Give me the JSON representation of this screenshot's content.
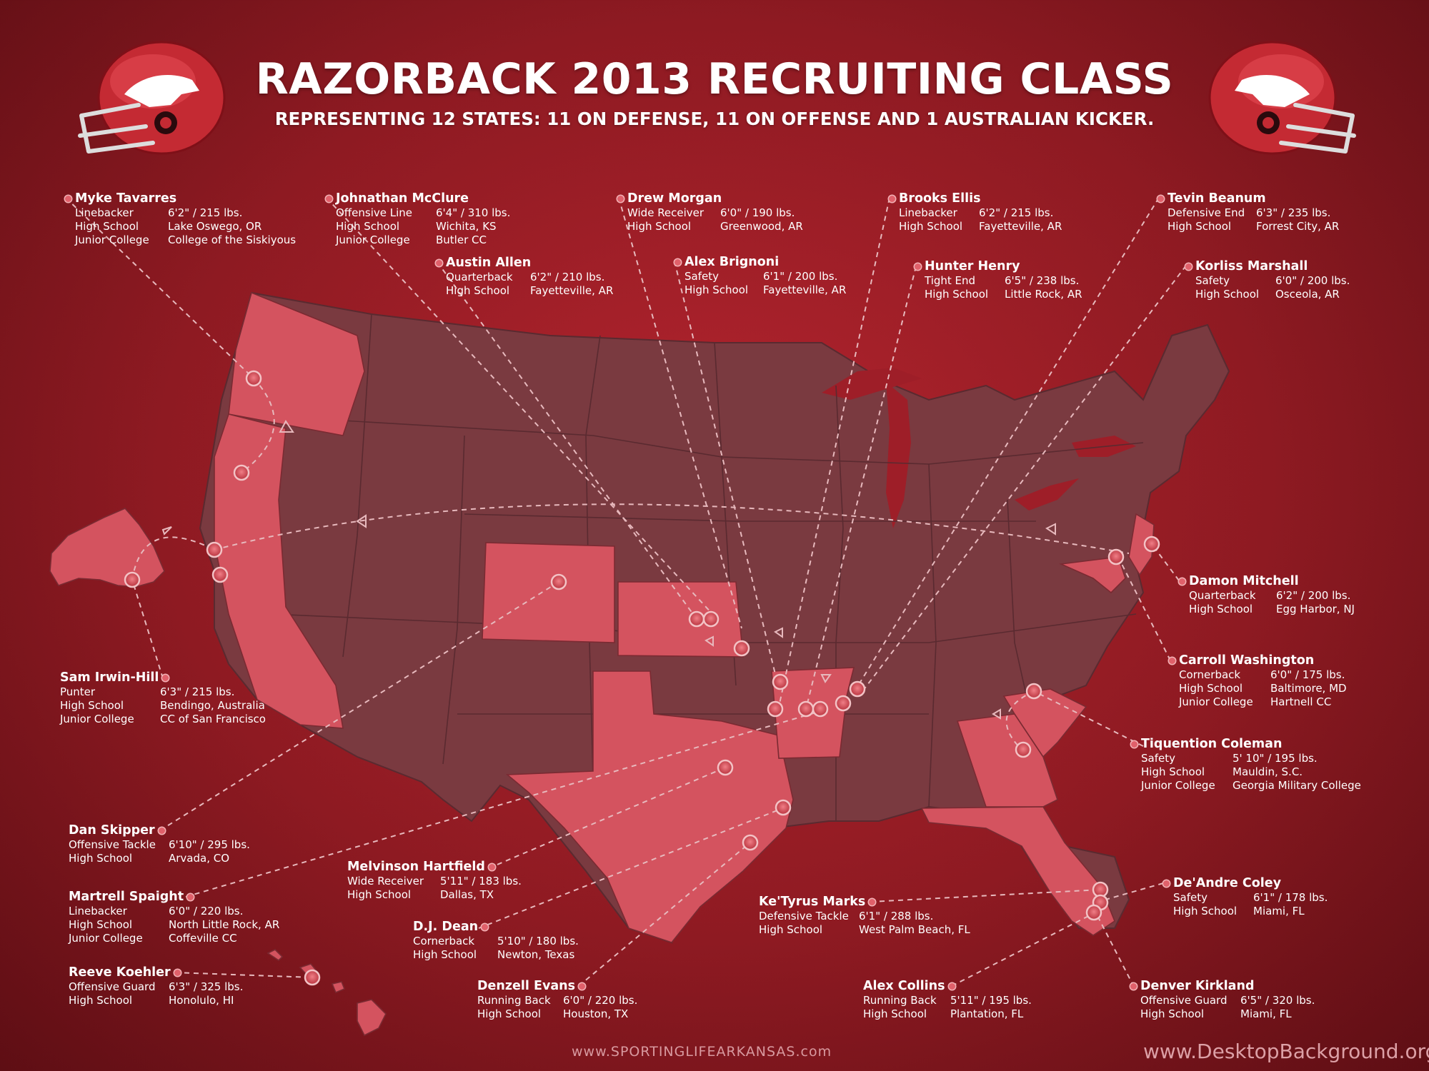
{
  "header": {
    "title": "RAZORBACK 2013 RECRUITING CLASS",
    "subtitle": "REPRESENTING 12 STATES: 11 ON DEFENSE, 11 ON OFFENSE AND 1 AUSTRALIAN KICKER."
  },
  "colors": {
    "background": "#9e1e28",
    "highlight_state": "#d4535f",
    "other_state": "#7a3a40",
    "marker": "#e0606a"
  },
  "recruits": [
    {
      "id": "myke-tavarres",
      "name": "Myke Tavarres",
      "rows": [
        [
          "Linebacker",
          "6'2\" / 215 lbs."
        ],
        [
          "High School",
          "Lake Oswego, OR"
        ],
        [
          "Junior College",
          "College of the Siskiyous"
        ]
      ]
    },
    {
      "id": "johnathan-mcclure",
      "name": "Johnathan McClure",
      "rows": [
        [
          "Offensive Line",
          "6'4\" / 310 lbs."
        ],
        [
          "High School",
          "Wichita, KS"
        ],
        [
          "Junior College",
          "Butler CC"
        ]
      ]
    },
    {
      "id": "drew-morgan",
      "name": "Drew Morgan",
      "rows": [
        [
          "Wide Receiver",
          "6'0\" / 190 lbs."
        ],
        [
          "High School",
          "Greenwood, AR"
        ]
      ]
    },
    {
      "id": "brooks-ellis",
      "name": "Brooks Ellis",
      "rows": [
        [
          "Linebacker",
          "6'2\" / 215 lbs."
        ],
        [
          "High School",
          "Fayetteville, AR"
        ]
      ]
    },
    {
      "id": "tevin-beanum",
      "name": "Tevin Beanum",
      "rows": [
        [
          "Defensive End",
          "6'3\" / 235 lbs."
        ],
        [
          "High School",
          "Forrest City, AR"
        ]
      ]
    },
    {
      "id": "austin-allen",
      "name": "Austin Allen",
      "rows": [
        [
          "Quarterback",
          "6'2\" / 210 lbs."
        ],
        [
          "High School",
          "Fayetteville, AR"
        ]
      ]
    },
    {
      "id": "alex-brignoni",
      "name": "Alex Brignoni",
      "rows": [
        [
          "Safety",
          "6'1\" / 200 lbs."
        ],
        [
          "High School",
          "Fayetteville, AR"
        ]
      ]
    },
    {
      "id": "hunter-henry",
      "name": "Hunter Henry",
      "rows": [
        [
          "Tight End",
          "6'5\" / 238 lbs."
        ],
        [
          "High School",
          "Little Rock, AR"
        ]
      ]
    },
    {
      "id": "korliss-marshall",
      "name": "Korliss Marshall",
      "rows": [
        [
          "Safety",
          "6'0\" / 200 lbs."
        ],
        [
          "High School",
          "Osceola, AR"
        ]
      ]
    },
    {
      "id": "damon-mitchell",
      "name": "Damon Mitchell",
      "rows": [
        [
          "Quarterback",
          "6'2\" / 200 lbs."
        ],
        [
          "High School",
          "Egg Harbor, NJ"
        ]
      ]
    },
    {
      "id": "carroll-washington",
      "name": "Carroll Washington",
      "rows": [
        [
          "Cornerback",
          "6'0\" / 175 lbs."
        ],
        [
          "High School",
          "Baltimore, MD"
        ],
        [
          "Junior College",
          "Hartnell CC"
        ]
      ]
    },
    {
      "id": "tiquention-coleman",
      "name": "Tiquention Coleman",
      "rows": [
        [
          "Safety",
          "5' 10\" / 195 lbs."
        ],
        [
          "High School",
          "Mauldin, S.C."
        ],
        [
          "Junior College",
          "Georgia Military College"
        ]
      ]
    },
    {
      "id": "sam-irwin-hill",
      "name": "Sam Irwin-Hill",
      "rows": [
        [
          "Punter",
          "6'3\" / 215 lbs."
        ],
        [
          "High School",
          "Bendingo, Australia"
        ],
        [
          "Junior College",
          "CC of San Francisco"
        ]
      ]
    },
    {
      "id": "dan-skipper",
      "name": "Dan Skipper",
      "rows": [
        [
          "Offensive Tackle",
          "6'10\" / 295 lbs."
        ],
        [
          "High School",
          "Arvada, CO"
        ]
      ]
    },
    {
      "id": "melvinson-hartfield",
      "name": "Melvinson Hartfield",
      "rows": [
        [
          "Wide Receiver",
          "5'11\" / 183 lbs."
        ],
        [
          "High School",
          "Dallas, TX"
        ]
      ]
    },
    {
      "id": "martrell-spaight",
      "name": "Martrell Spaight",
      "rows": [
        [
          "Linebacker",
          "6'0\" / 220 lbs."
        ],
        [
          "High School",
          "North Little Rock, AR"
        ],
        [
          "Junior College",
          "Coffeville CC"
        ]
      ]
    },
    {
      "id": "dj-dean",
      "name": "D.J. Dean",
      "rows": [
        [
          "Cornerback",
          "5'10\" / 180 lbs."
        ],
        [
          "High School",
          "Newton, Texas"
        ]
      ]
    },
    {
      "id": "ketyrus-marks",
      "name": "Ke'Tyrus Marks",
      "rows": [
        [
          "Defensive Tackle",
          "6'1\" / 288 lbs."
        ],
        [
          "High School",
          "West Palm Beach, FL"
        ]
      ]
    },
    {
      "id": "deandre-coley",
      "name": "De'Andre Coley",
      "rows": [
        [
          "Safety",
          "6'1\" / 178 lbs."
        ],
        [
          "High School",
          "Miami, FL"
        ]
      ]
    },
    {
      "id": "reeve-koehler",
      "name": "Reeve Koehler",
      "rows": [
        [
          "Offensive Guard",
          "6'3\" / 325 lbs."
        ],
        [
          "High School",
          "Honolulo, HI"
        ]
      ]
    },
    {
      "id": "denzell-evans",
      "name": "Denzell Evans",
      "rows": [
        [
          "Running Back",
          "6'0\" / 220 lbs."
        ],
        [
          "High School",
          "Houston, TX"
        ]
      ]
    },
    {
      "id": "alex-collins",
      "name": "Alex Collins",
      "rows": [
        [
          "Running Back",
          "5'11\" / 195 lbs."
        ],
        [
          "High School",
          "Plantation, FL"
        ]
      ]
    },
    {
      "id": "denver-kirkland",
      "name": "Denver Kirkland",
      "rows": [
        [
          "Offensive Guard",
          "6'5\" / 320 lbs."
        ],
        [
          "High School",
          "Miami, FL"
        ]
      ]
    }
  ],
  "footer": {
    "source": "www.SPORTINGLIFEARKANSAS.com",
    "watermark": "www.DesktopBackground.org"
  }
}
